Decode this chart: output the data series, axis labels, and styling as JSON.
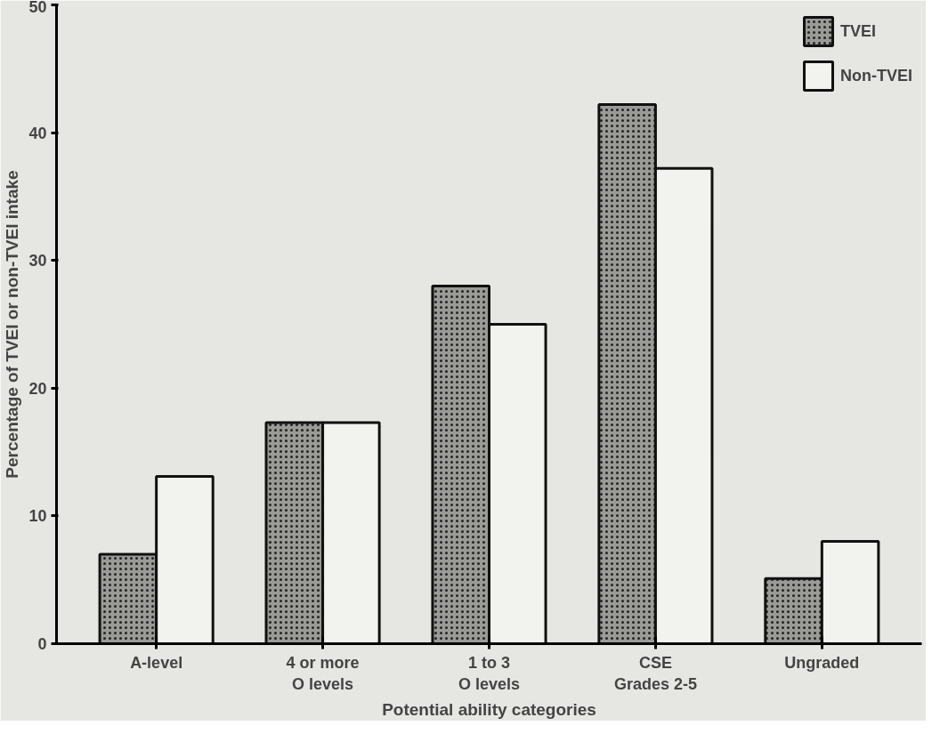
{
  "chart_data": {
    "type": "bar",
    "xlabel": "Potential ability categories",
    "ylabel": "Percentage of TVEI or non-TVEI intake",
    "categories": [
      "A-level",
      "4 or more\nO levels",
      "1 to 3\nO levels",
      "CSE\nGrades 2-5",
      "Ungraded"
    ],
    "series": [
      {
        "name": "TVEI",
        "color": "#9a9a96",
        "values": [
          7.0,
          17.3,
          28.0,
          42.2,
          5.1
        ]
      },
      {
        "name": "Non-TVEI",
        "color": "#f2f2ee",
        "values": [
          13.1,
          17.3,
          25.0,
          37.2,
          8.0
        ]
      }
    ],
    "ylim": [
      0,
      50
    ],
    "yticks": [
      0,
      10,
      20,
      30,
      40,
      50
    ],
    "legend": "top right"
  }
}
